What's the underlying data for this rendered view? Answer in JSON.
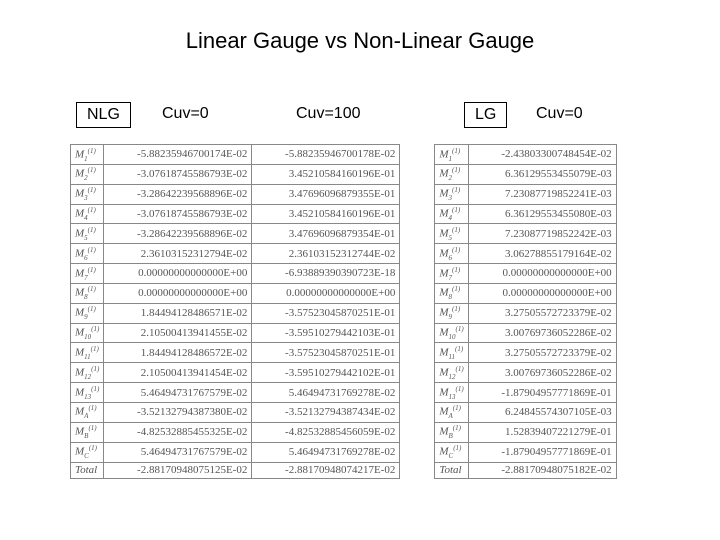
{
  "title": "Linear Gauge vs Non-Linear Gauge",
  "headers": {
    "nlg": "NLG",
    "cuv0_left": "Cuv=0",
    "cuv100": "Cuv=100",
    "lg": "LG",
    "cuv0_right": "Cuv=0"
  },
  "labels": [
    {
      "base": "M",
      "sup": "(1)",
      "sub": "1"
    },
    {
      "base": "M",
      "sup": "(1)",
      "sub": "2"
    },
    {
      "base": "M",
      "sup": "(1)",
      "sub": "3"
    },
    {
      "base": "M",
      "sup": "(1)",
      "sub": "4"
    },
    {
      "base": "M",
      "sup": "(1)",
      "sub": "5"
    },
    {
      "base": "M",
      "sup": "(1)",
      "sub": "6"
    },
    {
      "base": "M",
      "sup": "(1)",
      "sub": "7"
    },
    {
      "base": "M",
      "sup": "(1)",
      "sub": "8"
    },
    {
      "base": "M",
      "sup": "(1)",
      "sub": "9"
    },
    {
      "base": "M",
      "sup": "(1)",
      "sub": "10"
    },
    {
      "base": "M",
      "sup": "(1)",
      "sub": "11"
    },
    {
      "base": "M",
      "sup": "(1)",
      "sub": "12"
    },
    {
      "base": "M",
      "sup": "(1)",
      "sub": "13"
    },
    {
      "base": "M",
      "sup": "(1)",
      "sub": "14"
    },
    {
      "base": "M",
      "sup": "(1)",
      "sub": "A"
    },
    {
      "base": "M",
      "sup": "(1)",
      "sub": "B"
    },
    {
      "base": "M",
      "sup": "(1)",
      "sub": "C"
    },
    {
      "text": "Total"
    }
  ],
  "col_nlg_cuv0": [
    "-5.88235946700174E-02",
    "-3.07618745586793E-02",
    "-3.28642239568896E-02",
    "-3.07618745586793E-02",
    "-3.28642239568896E-02",
    "2.36103152312794E-02",
    "0.00000000000000E+00",
    "0.00000000000000E+00",
    "1.84494128486571E-02",
    "2.10500413941455E-02",
    "1.84494128486572E-02",
    "2.10500413941454E-02",
    "5.46494731767579E-02",
    "",
    "-3.52132794387380E-02",
    "-4.82532885455325E-02",
    "5.46494731767579E-02",
    "-2.88170948075125E-02"
  ],
  "col_nlg_cuv100": [
    "-5.88235946700178E-02",
    "3.45210584160196E-01",
    "3.47696096879355E-01",
    "3.45210584160196E-01",
    "3.47696096879354E-01",
    "2.36103152312744E-02",
    "-6.93889390390723E-18",
    "0.00000000000000E+00",
    "-3.57523045870251E-01",
    "-3.59510279442103E-01",
    "-3.57523045870251E-01",
    "-3.59510279442102E-01",
    "5.46494731769278E-02",
    "",
    "-3.52132794387434E-02",
    "-4.82532885456059E-02",
    "5.46494731769278E-02",
    "-2.88170948074217E-02"
  ],
  "col_lg_cuv0": [
    "-2.43803300748454E-02",
    "6.36129553455079E-03",
    "7.23087719852241E-03",
    "6.36129553455080E-03",
    "7.23087719852242E-03",
    "3.06278855179164E-02",
    "0.00000000000000E+00",
    "0.00000000000000E+00",
    "3.27505572723379E-02",
    "3.00769736052286E-02",
    "3.27505572723379E-02",
    "3.00769736052286E-02",
    "-1.87904957771869E-01",
    "",
    "6.24845574307105E-03",
    "1.52839407221279E-01",
    "-1.87904957771869E-01",
    "-2.88170948075182E-02"
  ],
  "row_groups": [
    [
      0,
      5
    ],
    [
      6,
      7
    ],
    [
      8,
      13
    ],
    [
      14,
      16
    ],
    [
      17,
      17
    ]
  ]
}
